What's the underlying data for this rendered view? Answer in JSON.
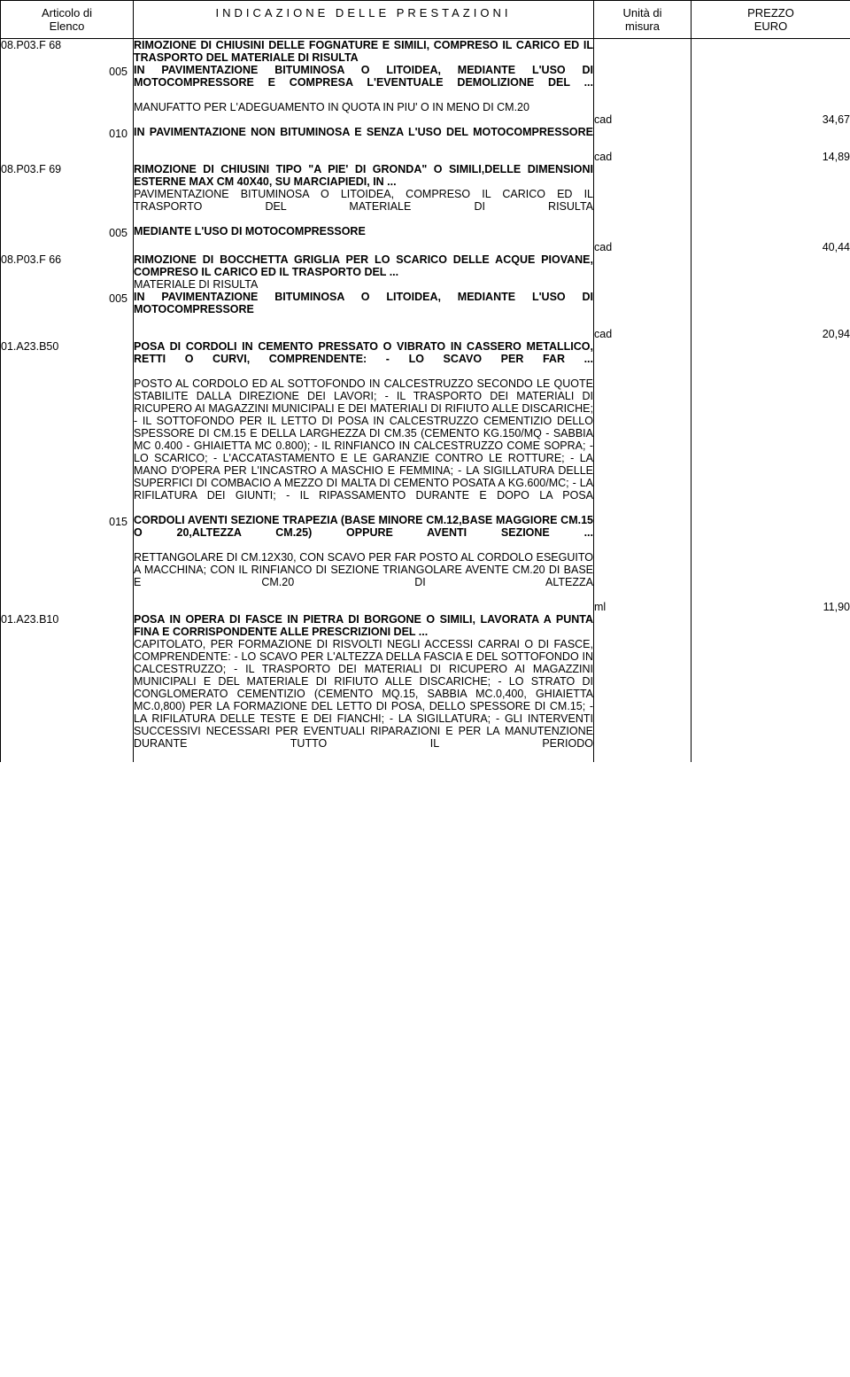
{
  "headers": {
    "col1_line1": "Articolo di",
    "col1_line2": "Elenco",
    "col2": "INDICAZIONE DELLE PRESTAZIONI",
    "col3_line1": "Unità di",
    "col3_line2": "misura",
    "col4_line1": "PREZZO",
    "col4_line2": "EURO"
  },
  "items": [
    {
      "code": "08.P03.F 68",
      "title": "RIMOZIONE DI CHIUSINI DELLE FOGNATURE E SIMILI, COMPRESO IL CARICO ED IL TRASPORTO DEL MATERIALE DI RISULTA",
      "subs": [
        {
          "subcode": "005",
          "bold": "IN PAVIMENTAZIONE BITUMINOSA O LITOIDEA, MEDIANTE L'USO DI MOTOCOMPRESSORE E COMPRESA L'EVENTUALE DEMOLIZIONE DEL ...",
          "reg": "MANUFATTO PER L'ADEGUAMENTO IN QUOTA IN PIU' O IN MENO DI CM.20",
          "um": "cad",
          "price": "34,67",
          "justify_bold": true
        },
        {
          "subcode": "010",
          "bold": "IN PAVIMENTAZIONE NON BITUMINOSA E SENZA L'USO DEL MOTOCOMPRESSORE",
          "reg": "",
          "um": "cad",
          "price": "14,89",
          "justify_bold": true
        }
      ]
    },
    {
      "code": "08.P03.F 69",
      "title": "RIMOZIONE DI CHIUSINI TIPO \"A PIE' DI GRONDA\" O SIMILI,DELLE DIMENSIONI ESTERNE MAX CM 40X40, SU MARCIAPIEDI, IN ...",
      "title_reg": "PAVIMENTAZIONE BITUMINOSA O LITOIDEA, COMPRESO IL CARICO ED IL TRASPORTO DEL MATERIALE DI RISULTA",
      "title_reg_justify": true,
      "subs": [
        {
          "subcode": "005",
          "bold": "MEDIANTE L'USO DI MOTOCOMPRESSORE",
          "reg": "",
          "um": "cad",
          "price": "40,44",
          "justify_bold": false
        }
      ]
    },
    {
      "code": "08.P03.F 66",
      "title": "RIMOZIONE DI BOCCHETTA GRIGLIA PER LO SCARICO DELLE ACQUE PIOVANE, COMPRESO IL CARICO ED IL TRASPORTO DEL ...",
      "title_reg": "MATERIALE DI RISULTA",
      "subs": [
        {
          "subcode": "005",
          "bold": "IN PAVIMENTAZIONE BITUMINOSA O LITOIDEA, MEDIANTE L'USO DI MOTOCOMPRESSORE",
          "reg": "",
          "um": "cad",
          "price": "20,94",
          "justify_bold": true
        }
      ]
    },
    {
      "code": "01.A23.B50",
      "title": "POSA DI CORDOLI IN CEMENTO PRESSATO O VIBRATO IN CASSERO METALLICO, RETTI O CURVI, COMPRENDENTE: - LO SCAVO PER FAR ...",
      "title_justify": true,
      "title_reg": "POSTO AL CORDOLO ED AL SOTTOFONDO IN CALCESTRUZZO SECONDO LE QUOTE STABILITE DALLA DIREZIONE DEI LAVORI; - IL TRASPORTO DEI MATERIALI DI RICUPERO AI MAGAZZINI MUNICIPALI E DEI MATERIALI DI RIFIUTO ALLE DISCARICHE; - IL SOTTOFONDO PER IL LETTO DI POSA IN CALCESTRUZZO CEMENTIZIO DELLO SPESSORE DI CM.15 E DELLA LARGHEZZA DI CM.35 (CEMENTO KG.150/MQ - SABBIA MC 0.400 - GHIAIETTA MC 0.800); - IL RINFIANCO IN CALCESTRUZZO COME SOPRA; - LO SCARICO; - L'ACCATASTAMENTO E LE GARANZIE CONTRO LE ROTTURE; - LA MANO D'OPERA PER L'INCASTRO A MASCHIO E FEMMINA; - LA SIGILLATURA DELLE SUPERFICI DI COMBACIO A MEZZO DI MALTA DI CEMENTO POSATA A KG.600/MC; - LA RIFILATURA DEI GIUNTI; - IL RIPASSAMENTO DURANTE E DOPO LA POSA",
      "title_reg_justify": true,
      "subs": [
        {
          "subcode": "015",
          "bold": "CORDOLI AVENTI SEZIONE TRAPEZIA (BASE MINORE CM.12,BASE MAGGIORE CM.15 O 20,ALTEZZA CM.25) OPPURE AVENTI SEZIONE ...",
          "reg": "RETTANGOLARE DI CM.12X30, CON SCAVO PER FAR POSTO AL CORDOLO ESEGUITO A MACCHINA; CON IL RINFIANCO DI SEZIONE TRIANGOLARE AVENTE CM.20 DI BASE E CM.20 DI ALTEZZA",
          "um": "ml",
          "price": "11,90",
          "justify_bold": true,
          "justify_reg": true
        }
      ]
    },
    {
      "code": "01.A23.B10",
      "title": "POSA IN OPERA DI FASCE IN PIETRA DI BORGONE O SIMILI, LAVORATA A PUNTA FINA E CORRISPONDENTE ALLE PRESCRIZIONI DEL ...",
      "title_reg": "CAPITOLATO, PER FORMAZIONE DI RISVOLTI NEGLI ACCESSI CARRAI O DI FASCE, COMPRENDENTE: - LO SCAVO PER L'ALTEZZA DELLA FASCIA E DEL SOTTOFONDO IN CALCESTRUZZO; - IL TRASPORTO DEI MATERIALI DI RICUPERO AI MAGAZZINI MUNICIPALI E DEL MATERIALE DI RIFIUTO ALLE DISCARICHE; - LO STRATO DI CONGLOMERATO CEMENTIZIO (CEMENTO MQ.15, SABBIA MC.0,400, GHIAIETTA MC.0,800) PER LA FORMAZIONE DEL LETTO DI POSA, DELLO SPESSORE DI CM.15; - LA RIFILATURA DELLE TESTE E DEI FIANCHI; - LA SIGILLATURA; - GLI INTERVENTI SUCCESSIVI NECESSARI PER EVENTUALI RIPARAZIONI E PER LA MANUTENZIONE DURANTE TUTTO IL PERIODO",
      "title_reg_justify": true,
      "subs": []
    }
  ]
}
